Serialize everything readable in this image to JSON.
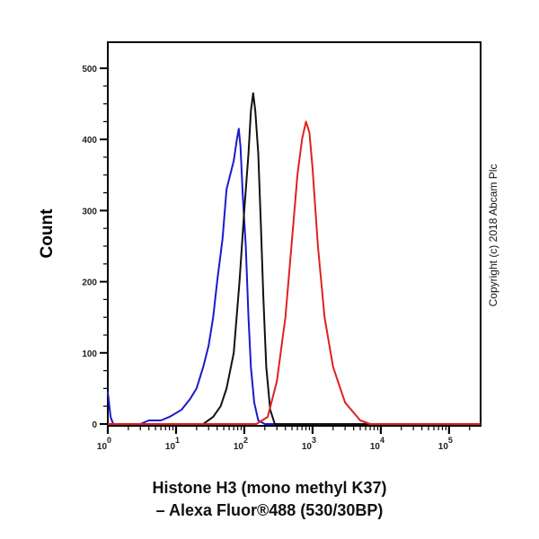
{
  "chart_data": {
    "type": "line",
    "title_lines": [
      "Histone H3 (mono methyl K37)",
      "– Alexa Fluor®488 (530/30BP)"
    ],
    "ylabel": "Count",
    "xlabel": "",
    "xscale": "log",
    "xlim": [
      1,
      290000
    ],
    "ylim": [
      0,
      540
    ],
    "yticks": [
      "0",
      "100",
      "200",
      "300",
      "400",
      "500"
    ],
    "xticks": [
      {
        "base": "10",
        "exp": "0"
      },
      {
        "base": "10",
        "exp": "1"
      },
      {
        "base": "10",
        "exp": "2"
      },
      {
        "base": "10",
        "exp": "3"
      },
      {
        "base": "10",
        "exp": "4"
      },
      {
        "base": "10",
        "exp": "5"
      }
    ],
    "grid": false,
    "series": [
      {
        "color": "#1a1acc",
        "points": [
          [
            1,
            45
          ],
          [
            1.1,
            10
          ],
          [
            1.2,
            0
          ],
          [
            3,
            0
          ],
          [
            4,
            5
          ],
          [
            6,
            5
          ],
          [
            8,
            10
          ],
          [
            12,
            20
          ],
          [
            16,
            35
          ],
          [
            20,
            50
          ],
          [
            25,
            80
          ],
          [
            30,
            110
          ],
          [
            35,
            150
          ],
          [
            40,
            200
          ],
          [
            48,
            260
          ],
          [
            55,
            330
          ],
          [
            62,
            350
          ],
          [
            70,
            370
          ],
          [
            78,
            400
          ],
          [
            83,
            415
          ],
          [
            88,
            390
          ],
          [
            95,
            320
          ],
          [
            105,
            250
          ],
          [
            115,
            150
          ],
          [
            125,
            80
          ],
          [
            140,
            30
          ],
          [
            160,
            5
          ],
          [
            200,
            0
          ],
          [
            290000,
            0
          ]
        ]
      },
      {
        "color": "#111111",
        "points": [
          [
            1,
            0
          ],
          [
            25,
            0
          ],
          [
            35,
            10
          ],
          [
            45,
            25
          ],
          [
            55,
            50
          ],
          [
            70,
            100
          ],
          [
            85,
            200
          ],
          [
            100,
            300
          ],
          [
            115,
            380
          ],
          [
            125,
            440
          ],
          [
            135,
            465
          ],
          [
            145,
            440
          ],
          [
            160,
            380
          ],
          [
            175,
            280
          ],
          [
            190,
            180
          ],
          [
            210,
            80
          ],
          [
            240,
            20
          ],
          [
            280,
            0
          ],
          [
            290000,
            0
          ]
        ]
      },
      {
        "color": "#e02020",
        "points": [
          [
            1,
            0
          ],
          [
            150,
            0
          ],
          [
            220,
            10
          ],
          [
            300,
            60
          ],
          [
            400,
            150
          ],
          [
            500,
            260
          ],
          [
            600,
            350
          ],
          [
            700,
            400
          ],
          [
            800,
            425
          ],
          [
            900,
            410
          ],
          [
            1000,
            360
          ],
          [
            1200,
            250
          ],
          [
            1500,
            150
          ],
          [
            2000,
            80
          ],
          [
            3000,
            30
          ],
          [
            5000,
            5
          ],
          [
            7000,
            0
          ],
          [
            290000,
            0
          ]
        ]
      }
    ]
  },
  "copyright": "Copyright (c) 2018 Abcam Plc"
}
